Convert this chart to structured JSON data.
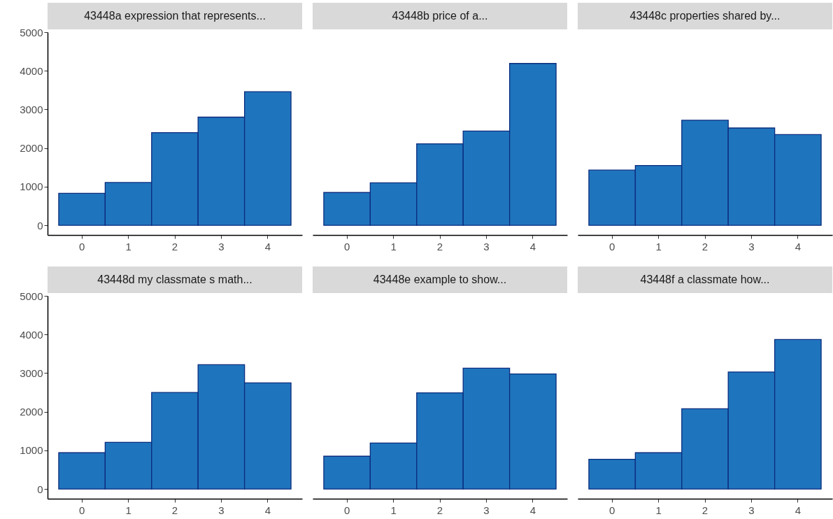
{
  "chart_data": [
    {
      "type": "bar",
      "title": "43448a expression that represents...",
      "categories": [
        "0",
        "1",
        "2",
        "3",
        "4"
      ],
      "values": [
        830,
        1110,
        2400,
        2800,
        3460
      ],
      "color": "#1f75bd",
      "ylim": [
        -250,
        5000
      ],
      "yticks": [
        0,
        1000,
        2000,
        3000,
        4000,
        5000
      ]
    },
    {
      "type": "bar",
      "title": "43448b price of a...",
      "categories": [
        "0",
        "1",
        "2",
        "3",
        "4"
      ],
      "values": [
        850,
        1100,
        2110,
        2440,
        4190
      ],
      "color": "#1f75bd",
      "ylim": [
        -250,
        5000
      ],
      "yticks": [
        0,
        1000,
        2000,
        3000,
        4000,
        5000
      ],
      "tick_labels": "x"
    },
    {
      "type": "bar",
      "title": "43448c properties shared by...",
      "categories": [
        "0",
        "1",
        "2",
        "3",
        "4"
      ],
      "values": [
        1430,
        1550,
        2720,
        2520,
        2350
      ],
      "color": "#1f75bd",
      "ylim": [
        -250,
        5000
      ],
      "yticks": [
        0,
        1000,
        2000,
        3000,
        4000,
        5000
      ],
      "tick_labels": "x"
    },
    {
      "type": "bar",
      "title": "43448d my classmate s math...",
      "categories": [
        "0",
        "1",
        "2",
        "3",
        "4"
      ],
      "values": [
        940,
        1210,
        2500,
        3220,
        2750
      ],
      "color": "#1f75bd",
      "ylim": [
        -250,
        5000
      ],
      "yticks": [
        0,
        1000,
        2000,
        3000,
        4000,
        5000
      ]
    },
    {
      "type": "bar",
      "title": "43448e example to show...",
      "categories": [
        "0",
        "1",
        "2",
        "3",
        "4"
      ],
      "values": [
        850,
        1190,
        2490,
        3130,
        2980
      ],
      "color": "#1f75bd",
      "ylim": [
        -250,
        5000
      ],
      "yticks": [
        0,
        1000,
        2000,
        3000,
        4000,
        5000
      ],
      "tick_labels": "x"
    },
    {
      "type": "bar",
      "title": "43448f a classmate how...",
      "categories": [
        "0",
        "1",
        "2",
        "3",
        "4"
      ],
      "values": [
        770,
        940,
        2080,
        3030,
        3870
      ],
      "color": "#1f75bd",
      "ylim": [
        -250,
        5000
      ],
      "yticks": [
        0,
        1000,
        2000,
        3000,
        4000,
        5000
      ],
      "tick_labels": "x"
    }
  ]
}
